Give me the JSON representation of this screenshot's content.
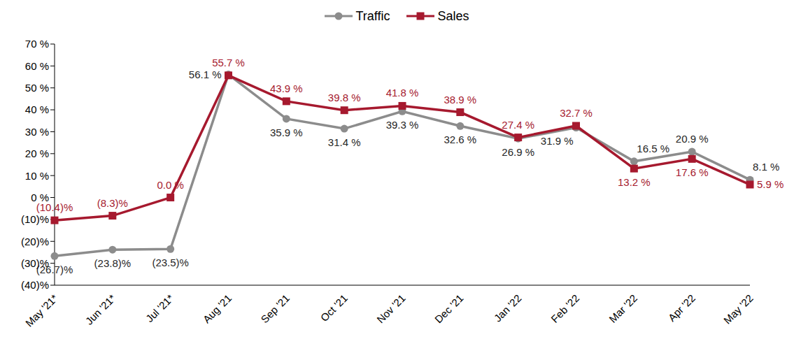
{
  "chart_data": {
    "type": "line",
    "categories": [
      "May '21*",
      "Jun '21*",
      "Jul '21*",
      "Aug '21",
      "Sep '21",
      "Oct '21",
      "Nov '21",
      "Dec '21",
      "Jan '22",
      "Feb '22",
      "Mar '22",
      "Apr '22",
      "May '22"
    ],
    "series": [
      {
        "name": "Traffic",
        "color": "#8c8c8c",
        "marker": "circle",
        "values": [
          -26.7,
          -23.8,
          -23.5,
          56.1,
          35.9,
          31.4,
          39.3,
          32.6,
          26.9,
          31.9,
          16.5,
          20.9,
          8.1
        ],
        "value_labels": [
          "(26.7)%",
          "(23.8)%",
          "(23.5)%",
          "56.1 %",
          "35.9 %",
          "31.4 %",
          "39.3 %",
          "32.6 %",
          "26.9 %",
          "31.9 %",
          "16.5 %",
          "20.9 %",
          "8.1 %"
        ]
      },
      {
        "name": "Sales",
        "color": "#a6192e",
        "marker": "square",
        "values": [
          -10.4,
          -8.3,
          0.0,
          55.7,
          43.9,
          39.8,
          41.8,
          38.9,
          27.4,
          32.7,
          13.2,
          17.6,
          5.9
        ],
        "value_labels": [
          "(10.4)%",
          "(8.3)%",
          "0.0 %",
          "55.7 %",
          "43.9 %",
          "39.8 %",
          "41.8 %",
          "38.9 %",
          "27.4 %",
          "32.7 %",
          "13.2 %",
          "17.6 %",
          "5.9 %"
        ]
      }
    ],
    "ylim": [
      -40,
      70
    ],
    "yticks": [
      {
        "value": -40,
        "label": "(40)%"
      },
      {
        "value": -30,
        "label": "(30)%"
      },
      {
        "value": -20,
        "label": "(20)%"
      },
      {
        "value": -10,
        "label": "(10)%"
      },
      {
        "value": 0,
        "label": "0 %"
      },
      {
        "value": 10,
        "label": "10 %"
      },
      {
        "value": 20,
        "label": "20 %"
      },
      {
        "value": 30,
        "label": "30 %"
      },
      {
        "value": 40,
        "label": "40 %"
      },
      {
        "value": 50,
        "label": "50 %"
      },
      {
        "value": 60,
        "label": "60 %"
      },
      {
        "value": 70,
        "label": "70 %"
      }
    ],
    "grid": false,
    "legend": "top",
    "data_labels": true
  }
}
